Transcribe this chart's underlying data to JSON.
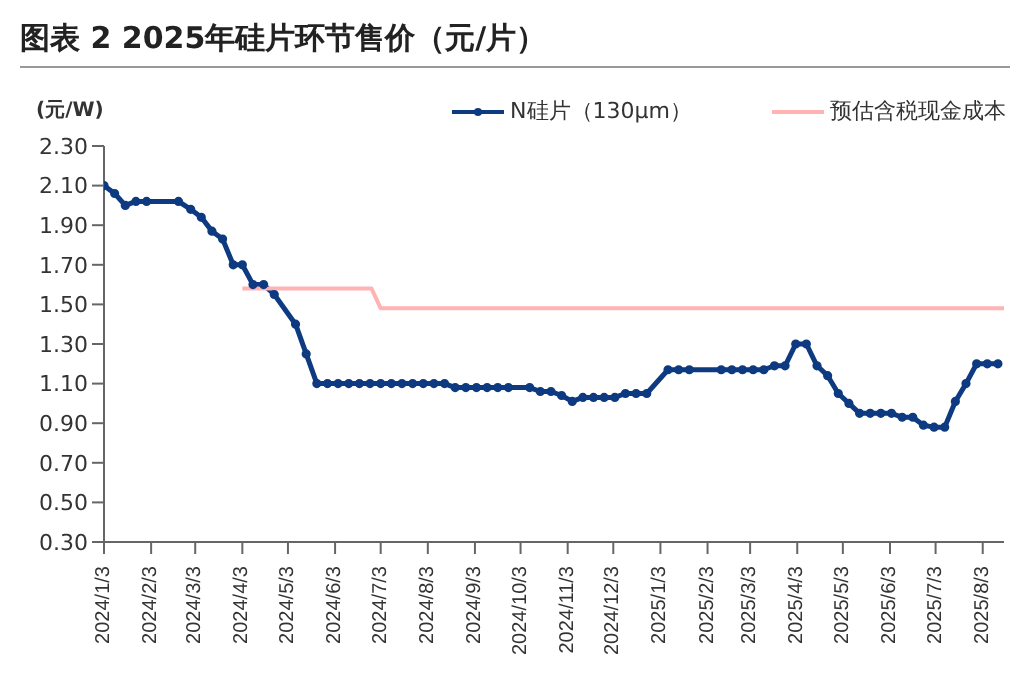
{
  "chart_data": {
    "type": "line",
    "title": "图表 2  2025年硅片环节售价（元/片）",
    "ylabel": "(元/W)",
    "xlim": [
      "2024-01-03",
      "2025-08-17"
    ],
    "xticks": [
      {
        "value": "2024-01-03",
        "label": "2024/1/3"
      },
      {
        "value": "2024-02-03",
        "label": "2024/2/3"
      },
      {
        "value": "2024-03-03",
        "label": "2024/3/3"
      },
      {
        "value": "2024-04-03",
        "label": "2024/4/3"
      },
      {
        "value": "2024-05-03",
        "label": "2024/5/3"
      },
      {
        "value": "2024-06-03",
        "label": "2024/6/3"
      },
      {
        "value": "2024-07-03",
        "label": "2024/7/3"
      },
      {
        "value": "2024-08-03",
        "label": "2024/8/3"
      },
      {
        "value": "2024-09-03",
        "label": "2024/9/3"
      },
      {
        "value": "2024-10-03",
        "label": "2024/10/3"
      },
      {
        "value": "2024-11-03",
        "label": "2024/11/3"
      },
      {
        "value": "2024-12-03",
        "label": "2024/12/3"
      },
      {
        "value": "2025-01-03",
        "label": "2025/1/3"
      },
      {
        "value": "2025-02-03",
        "label": "2025/2/3"
      },
      {
        "value": "2025-03-03",
        "label": "2025/3/3"
      },
      {
        "value": "2025-04-03",
        "label": "2025/4/3"
      },
      {
        "value": "2025-05-03",
        "label": "2025/5/3"
      },
      {
        "value": "2025-06-03",
        "label": "2025/6/3"
      },
      {
        "value": "2025-07-03",
        "label": "2025/7/3"
      },
      {
        "value": "2025-08-03",
        "label": "2025/8/3"
      }
    ],
    "ylim": [
      0.3,
      2.3
    ],
    "yticks": [
      {
        "value": 0.3,
        "label": "0.30"
      },
      {
        "value": 0.5,
        "label": "0.50"
      },
      {
        "value": 0.7,
        "label": "0.70"
      },
      {
        "value": 0.9,
        "label": "0.90"
      },
      {
        "value": 1.1,
        "label": "1.10"
      },
      {
        "value": 1.3,
        "label": "1.30"
      },
      {
        "value": 1.5,
        "label": "1.50"
      },
      {
        "value": 1.7,
        "label": "1.70"
      },
      {
        "value": 1.9,
        "label": "1.90"
      },
      {
        "value": 2.1,
        "label": "2.10"
      },
      {
        "value": 2.3,
        "label": "2.30"
      }
    ],
    "grid": false,
    "legend": "top right",
    "series": [
      {
        "name": "N硅片（130μm）",
        "color": "#0d3a80",
        "marker": "circle",
        "x": [
          "2024-01-03",
          "2024-01-10",
          "2024-01-17",
          "2024-01-24",
          "2024-01-31",
          "2024-02-21",
          "2024-02-29",
          "2024-03-07",
          "2024-03-14",
          "2024-03-21",
          "2024-03-28",
          "2024-04-03",
          "2024-04-10",
          "2024-04-17",
          "2024-04-24",
          "2024-05-08",
          "2024-05-15",
          "2024-05-22",
          "2024-05-29",
          "2024-06-05",
          "2024-06-12",
          "2024-06-19",
          "2024-06-26",
          "2024-07-03",
          "2024-07-10",
          "2024-07-17",
          "2024-07-24",
          "2024-07-31",
          "2024-08-07",
          "2024-08-14",
          "2024-08-21",
          "2024-08-28",
          "2024-09-04",
          "2024-09-11",
          "2024-09-18",
          "2024-09-25",
          "2024-10-09",
          "2024-10-16",
          "2024-10-23",
          "2024-10-30",
          "2024-11-06",
          "2024-11-13",
          "2024-11-20",
          "2024-11-27",
          "2024-12-04",
          "2024-12-11",
          "2024-12-18",
          "2024-12-25",
          "2025-01-08",
          "2025-01-15",
          "2025-01-22",
          "2025-02-12",
          "2025-02-19",
          "2025-02-26",
          "2025-03-05",
          "2025-03-12",
          "2025-03-19",
          "2025-03-26",
          "2025-04-02",
          "2025-04-09",
          "2025-04-16",
          "2025-04-23",
          "2025-04-30",
          "2025-05-07",
          "2025-05-14",
          "2025-05-21",
          "2025-05-28",
          "2025-06-04",
          "2025-06-11",
          "2025-06-18",
          "2025-06-25",
          "2025-07-02",
          "2025-07-09",
          "2025-07-16",
          "2025-07-23",
          "2025-07-30",
          "2025-08-06",
          "2025-08-13"
        ],
        "values": [
          2.1,
          2.06,
          2.0,
          2.02,
          2.02,
          2.02,
          1.98,
          1.94,
          1.87,
          1.83,
          1.7,
          1.7,
          1.6,
          1.6,
          1.55,
          1.4,
          1.25,
          1.1,
          1.1,
          1.1,
          1.1,
          1.1,
          1.1,
          1.1,
          1.1,
          1.1,
          1.1,
          1.1,
          1.1,
          1.1,
          1.08,
          1.08,
          1.08,
          1.08,
          1.08,
          1.08,
          1.08,
          1.06,
          1.06,
          1.04,
          1.01,
          1.03,
          1.03,
          1.03,
          1.03,
          1.05,
          1.05,
          1.05,
          1.17,
          1.17,
          1.17,
          1.17,
          1.17,
          1.17,
          1.17,
          1.17,
          1.19,
          1.19,
          1.3,
          1.3,
          1.19,
          1.14,
          1.05,
          1.0,
          0.95,
          0.95,
          0.95,
          0.95,
          0.93,
          0.93,
          0.89,
          0.88,
          0.88,
          1.01,
          1.1,
          1.2,
          1.2,
          1.2
        ]
      },
      {
        "name": "预估含税现金成本",
        "color": "#ffb3b3",
        "marker": "none",
        "x": [
          "2024-04-03",
          "2024-06-27",
          "2024-07-03",
          "2025-08-17"
        ],
        "values": [
          1.58,
          1.58,
          1.48,
          1.48
        ]
      }
    ]
  }
}
